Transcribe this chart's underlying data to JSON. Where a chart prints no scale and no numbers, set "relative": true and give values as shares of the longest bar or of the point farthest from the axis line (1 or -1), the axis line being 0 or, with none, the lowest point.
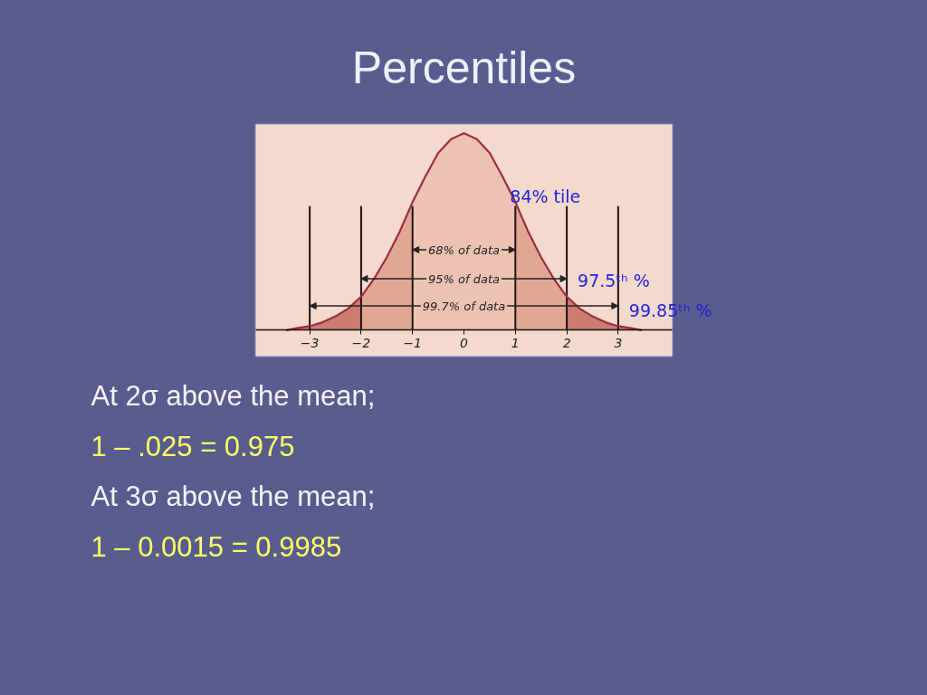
{
  "chart_data": {
    "type": "area",
    "title": "Percentiles",
    "relative": true,
    "xlim": [
      -4.05,
      4.05
    ],
    "xticks": [
      {
        "value": -3,
        "label": "−3"
      },
      {
        "value": -2,
        "label": "−2"
      },
      {
        "value": -1,
        "label": "−1"
      },
      0,
      1,
      2,
      3
    ],
    "series": [
      {
        "color": "#cd7d72",
        "x": [
          -3.45,
          -3.25,
          -3,
          -2.75,
          -2.5,
          -2.25,
          -2
        ],
        "values": [
          0.0,
          0.01,
          0.02,
          0.04,
          0.07,
          0.11,
          0.17
        ]
      },
      {
        "color": "#e0a795",
        "x": [
          -2,
          -1.75,
          -1.5,
          -1.25,
          -1
        ],
        "values": [
          0.17,
          0.26,
          0.37,
          0.5,
          0.65
        ]
      },
      {
        "color": "#ecc2b2",
        "x": [
          -1,
          -0.75,
          -0.5,
          -0.25,
          0,
          0.25,
          0.5,
          0.75,
          1
        ],
        "values": [
          0.65,
          0.78,
          0.9,
          0.97,
          1.0,
          0.97,
          0.9,
          0.78,
          0.65
        ]
      },
      {
        "color": "#e0a795",
        "x": [
          1,
          1.25,
          1.5,
          1.75,
          2
        ],
        "values": [
          0.65,
          0.5,
          0.37,
          0.26,
          0.17
        ]
      },
      {
        "color": "#cd7d72",
        "x": [
          2,
          2.25,
          2.5,
          2.75,
          3,
          3.25,
          3.45
        ],
        "values": [
          0.17,
          0.11,
          0.07,
          0.04,
          0.02,
          0.01,
          0.0
        ]
      },
      {
        "type": "line",
        "color": "#9e2d3c",
        "x": [
          -3.45,
          -3.25,
          -3,
          -2.75,
          -2.5,
          -2.25,
          -2,
          -1.75,
          -1.5,
          -1.25,
          -1,
          -0.75,
          -0.5,
          -0.25,
          0,
          0.25,
          0.5,
          0.75,
          1,
          1.25,
          1.5,
          1.75,
          2,
          2.25,
          2.5,
          2.75,
          3,
          3.25,
          3.45
        ],
        "values": [
          0.0,
          0.01,
          0.02,
          0.04,
          0.07,
          0.11,
          0.17,
          0.26,
          0.37,
          0.5,
          0.65,
          0.78,
          0.9,
          0.97,
          1.0,
          0.97,
          0.9,
          0.78,
          0.65,
          0.5,
          0.37,
          0.26,
          0.17,
          0.11,
          0.07,
          0.04,
          0.02,
          0.01,
          0.0
        ]
      }
    ],
    "ref_lines": [
      {
        "axis": "x",
        "value": -3,
        "color": "#1e1414"
      },
      {
        "axis": "x",
        "value": -2,
        "color": "#1e1414"
      },
      {
        "axis": "x",
        "value": -1,
        "color": "#1e1414"
      },
      {
        "axis": "x",
        "value": 1,
        "color": "#1e1414"
      },
      {
        "axis": "x",
        "value": 2,
        "color": "#1e1414"
      },
      {
        "axis": "x",
        "value": 3,
        "color": "#1e1414"
      }
    ],
    "annotations": [
      {
        "text": "84% tile",
        "x": 1,
        "y": 0.68
      },
      "68% of data",
      "95% of data",
      {
        "text": "97.5ᵗʰ %",
        "x": 2,
        "y": 0.25
      },
      "99.7% of data",
      {
        "text": "99.85ᵗʰ %",
        "x": 3,
        "y": 0.1
      },
      "At 2σ above the mean;",
      "1 – .025 = 0.975",
      "At 3σ above the mean;",
      "1 – 0.0015 = 0.9985"
    ]
  }
}
